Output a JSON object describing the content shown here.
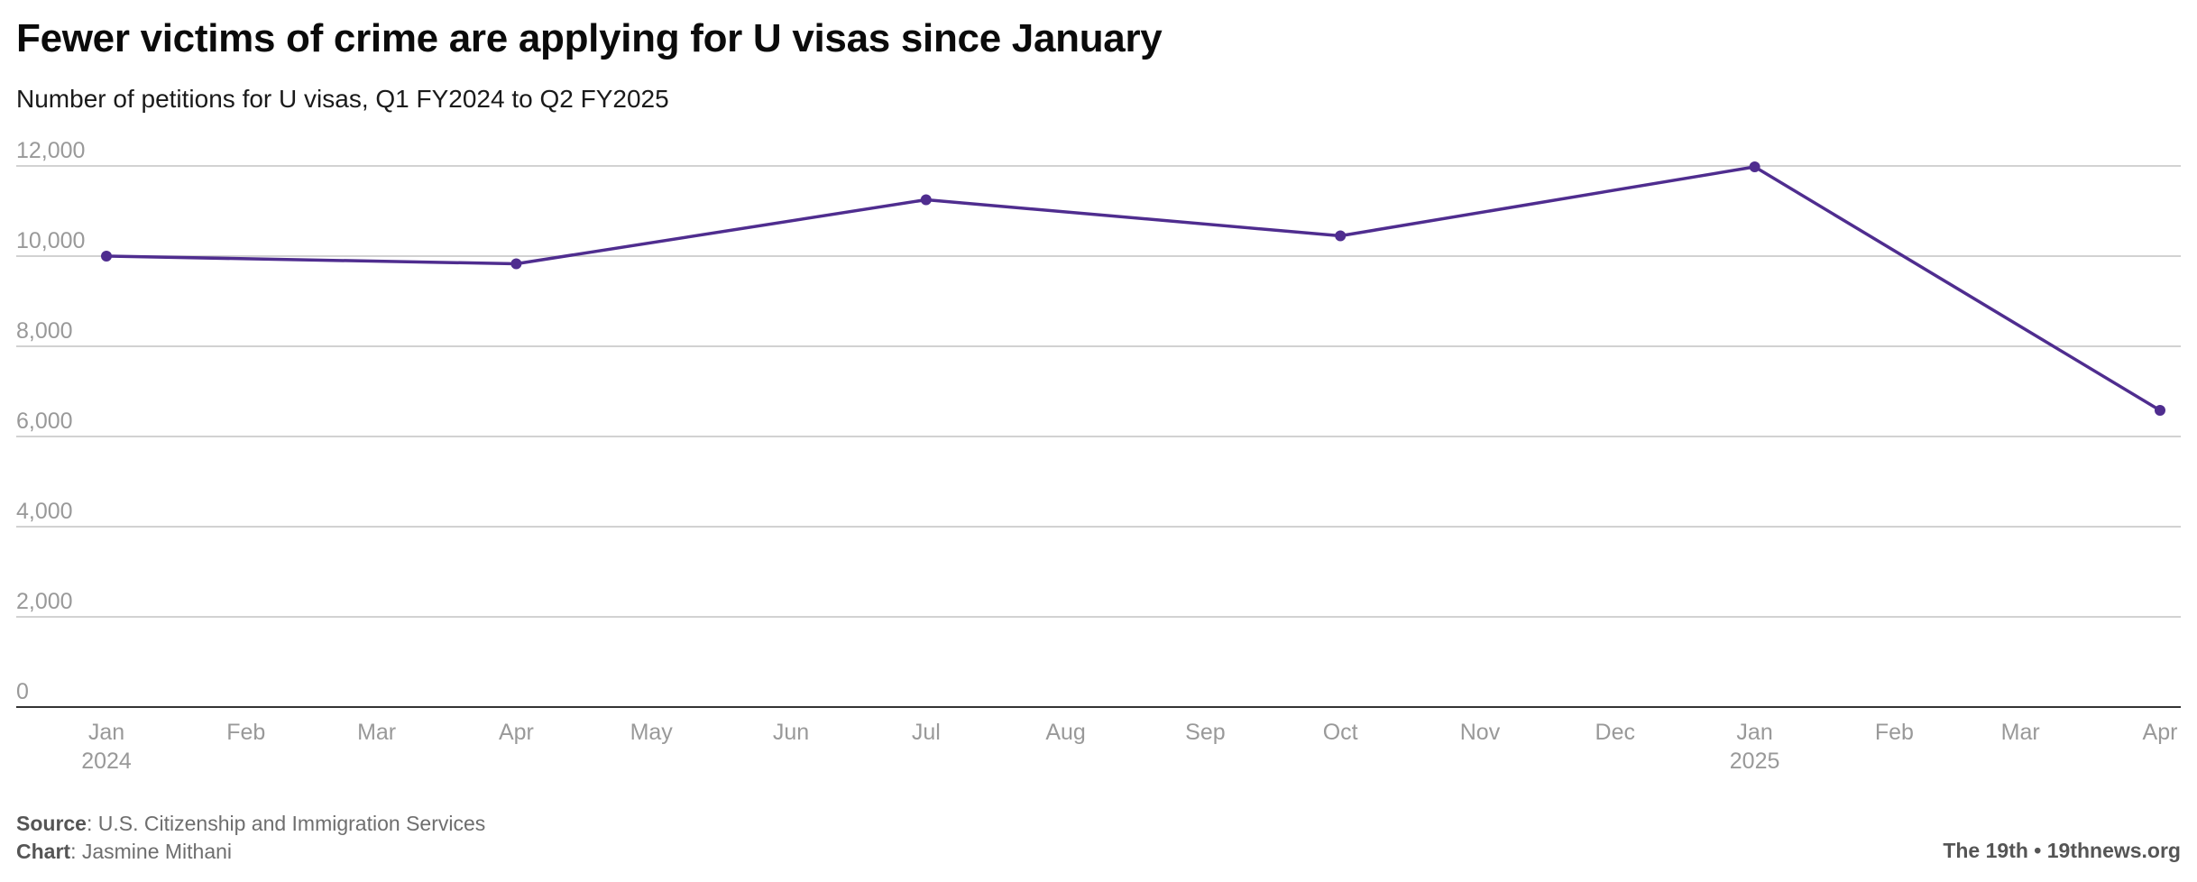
{
  "chart_data": {
    "type": "line",
    "title": "Fewer victims of crime are applying for U visas since January",
    "subtitle": "Number of petitions for U visas, Q1 FY2024 to Q2 FY2025",
    "x_dates": [
      "2024-01-01",
      "2024-04-01",
      "2024-07-01",
      "2024-10-01",
      "2025-01-01",
      "2025-04-01"
    ],
    "series": [
      {
        "values": [
          10000,
          9830,
          11250,
          10450,
          11980,
          6580
        ]
      }
    ],
    "ylim": [
      0,
      12000
    ],
    "y_ticks": [
      0,
      2000,
      4000,
      6000,
      8000,
      10000,
      12000
    ],
    "y_tick_labels": [
      "0",
      "2,000",
      "4,000",
      "6,000",
      "8,000",
      "10,000",
      "12,000"
    ],
    "x_ticks": [
      {
        "date": "2024-01-01",
        "label": "Jan",
        "year": "2024"
      },
      {
        "date": "2024-02-01",
        "label": "Feb",
        "year": ""
      },
      {
        "date": "2024-03-01",
        "label": "Mar",
        "year": ""
      },
      {
        "date": "2024-04-01",
        "label": "Apr",
        "year": ""
      },
      {
        "date": "2024-05-01",
        "label": "May",
        "year": ""
      },
      {
        "date": "2024-06-01",
        "label": "Jun",
        "year": ""
      },
      {
        "date": "2024-07-01",
        "label": "Jul",
        "year": ""
      },
      {
        "date": "2024-08-01",
        "label": "Aug",
        "year": ""
      },
      {
        "date": "2024-09-01",
        "label": "Sep",
        "year": ""
      },
      {
        "date": "2024-10-01",
        "label": "Oct",
        "year": ""
      },
      {
        "date": "2024-11-01",
        "label": "Nov",
        "year": ""
      },
      {
        "date": "2024-12-01",
        "label": "Dec",
        "year": ""
      },
      {
        "date": "2025-01-01",
        "label": "Jan",
        "year": "2025"
      },
      {
        "date": "2025-02-01",
        "label": "Feb",
        "year": ""
      },
      {
        "date": "2025-03-01",
        "label": "Mar",
        "year": ""
      },
      {
        "date": "2025-04-01",
        "label": "Apr",
        "year": ""
      }
    ],
    "grid": true,
    "line_color": "#4f2d8f"
  },
  "footer": {
    "source_label": "Source",
    "source_text": ": U.S. Citizenship and Immigration Services",
    "chart_label": "Chart",
    "chart_text": ": Jasmine Mithani",
    "credit": "The 19th • 19thnews.org"
  }
}
